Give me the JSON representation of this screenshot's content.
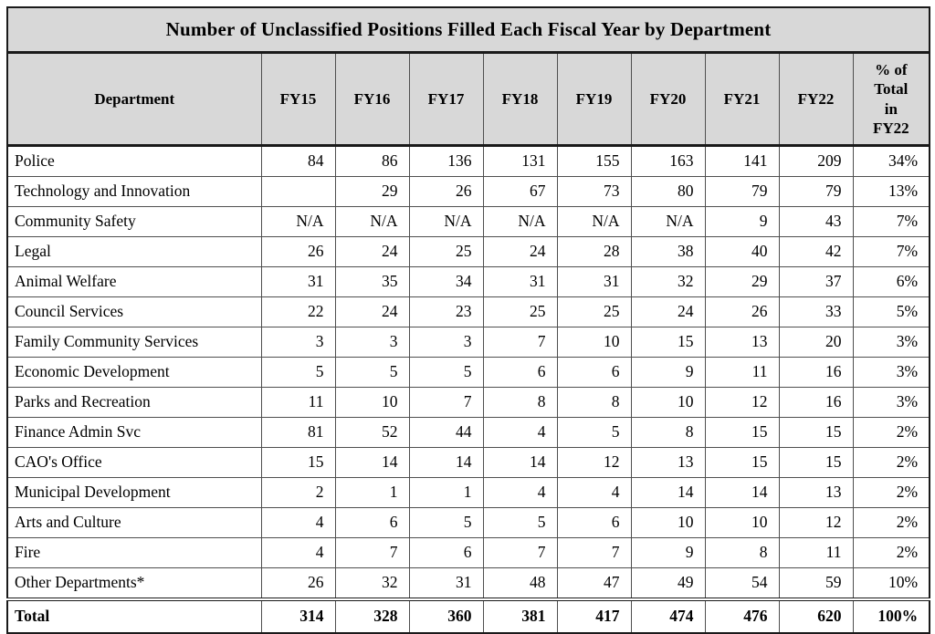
{
  "chart_data": {
    "type": "table",
    "title": "Number of Unclassified Positions Filled Each Fiscal Year by Department",
    "columns": [
      "Department",
      "FY15",
      "FY16",
      "FY17",
      "FY18",
      "FY19",
      "FY20",
      "FY21",
      "FY22",
      "% of\nTotal\nin\nFY22"
    ],
    "rows": [
      {
        "department": "Police",
        "values": [
          "84",
          "86",
          "136",
          "131",
          "155",
          "163",
          "141",
          "209",
          "34%"
        ]
      },
      {
        "department": "Technology and Innovation",
        "values": [
          "",
          "29",
          "26",
          "67",
          "73",
          "80",
          "79",
          "79",
          "13%"
        ]
      },
      {
        "department": "Community Safety",
        "values": [
          "N/A",
          "N/A",
          "N/A",
          "N/A",
          "N/A",
          "N/A",
          "9",
          "43",
          "7%"
        ]
      },
      {
        "department": "Legal",
        "values": [
          "26",
          "24",
          "25",
          "24",
          "28",
          "38",
          "40",
          "42",
          "7%"
        ]
      },
      {
        "department": "Animal Welfare",
        "values": [
          "31",
          "35",
          "34",
          "31",
          "31",
          "32",
          "29",
          "37",
          "6%"
        ]
      },
      {
        "department": "Council Services",
        "values": [
          "22",
          "24",
          "23",
          "25",
          "25",
          "24",
          "26",
          "33",
          "5%"
        ]
      },
      {
        "department": "Family Community Services",
        "values": [
          "3",
          "3",
          "3",
          "7",
          "10",
          "15",
          "13",
          "20",
          "3%"
        ]
      },
      {
        "department": "Economic Development",
        "values": [
          "5",
          "5",
          "5",
          "6",
          "6",
          "9",
          "11",
          "16",
          "3%"
        ]
      },
      {
        "department": "Parks and Recreation",
        "values": [
          "11",
          "10",
          "7",
          "8",
          "8",
          "10",
          "12",
          "16",
          "3%"
        ]
      },
      {
        "department": "Finance Admin Svc",
        "values": [
          "81",
          "52",
          "44",
          "4",
          "5",
          "8",
          "15",
          "15",
          "2%"
        ]
      },
      {
        "department": "CAO's Office",
        "values": [
          "15",
          "14",
          "14",
          "14",
          "12",
          "13",
          "15",
          "15",
          "2%"
        ]
      },
      {
        "department": "Municipal Development",
        "values": [
          "2",
          "1",
          "1",
          "4",
          "4",
          "14",
          "14",
          "13",
          "2%"
        ]
      },
      {
        "department": "Arts and Culture",
        "values": [
          "4",
          "6",
          "5",
          "5",
          "6",
          "10",
          "10",
          "12",
          "2%"
        ]
      },
      {
        "department": "Fire",
        "values": [
          "4",
          "7",
          "6",
          "7",
          "7",
          "9",
          "8",
          "11",
          "2%"
        ]
      },
      {
        "department": "Other Departments*",
        "values": [
          "26",
          "32",
          "31",
          "48",
          "47",
          "49",
          "54",
          "59",
          "10%"
        ]
      }
    ],
    "total": {
      "department": "Total",
      "values": [
        "314",
        "328",
        "360",
        "381",
        "417",
        "474",
        "476",
        "620",
        "100%"
      ]
    },
    "colors": {
      "header_background": "#d8d8d8",
      "border": "#1a1a1a",
      "text": "#000000",
      "body_background": "#ffffff"
    }
  }
}
